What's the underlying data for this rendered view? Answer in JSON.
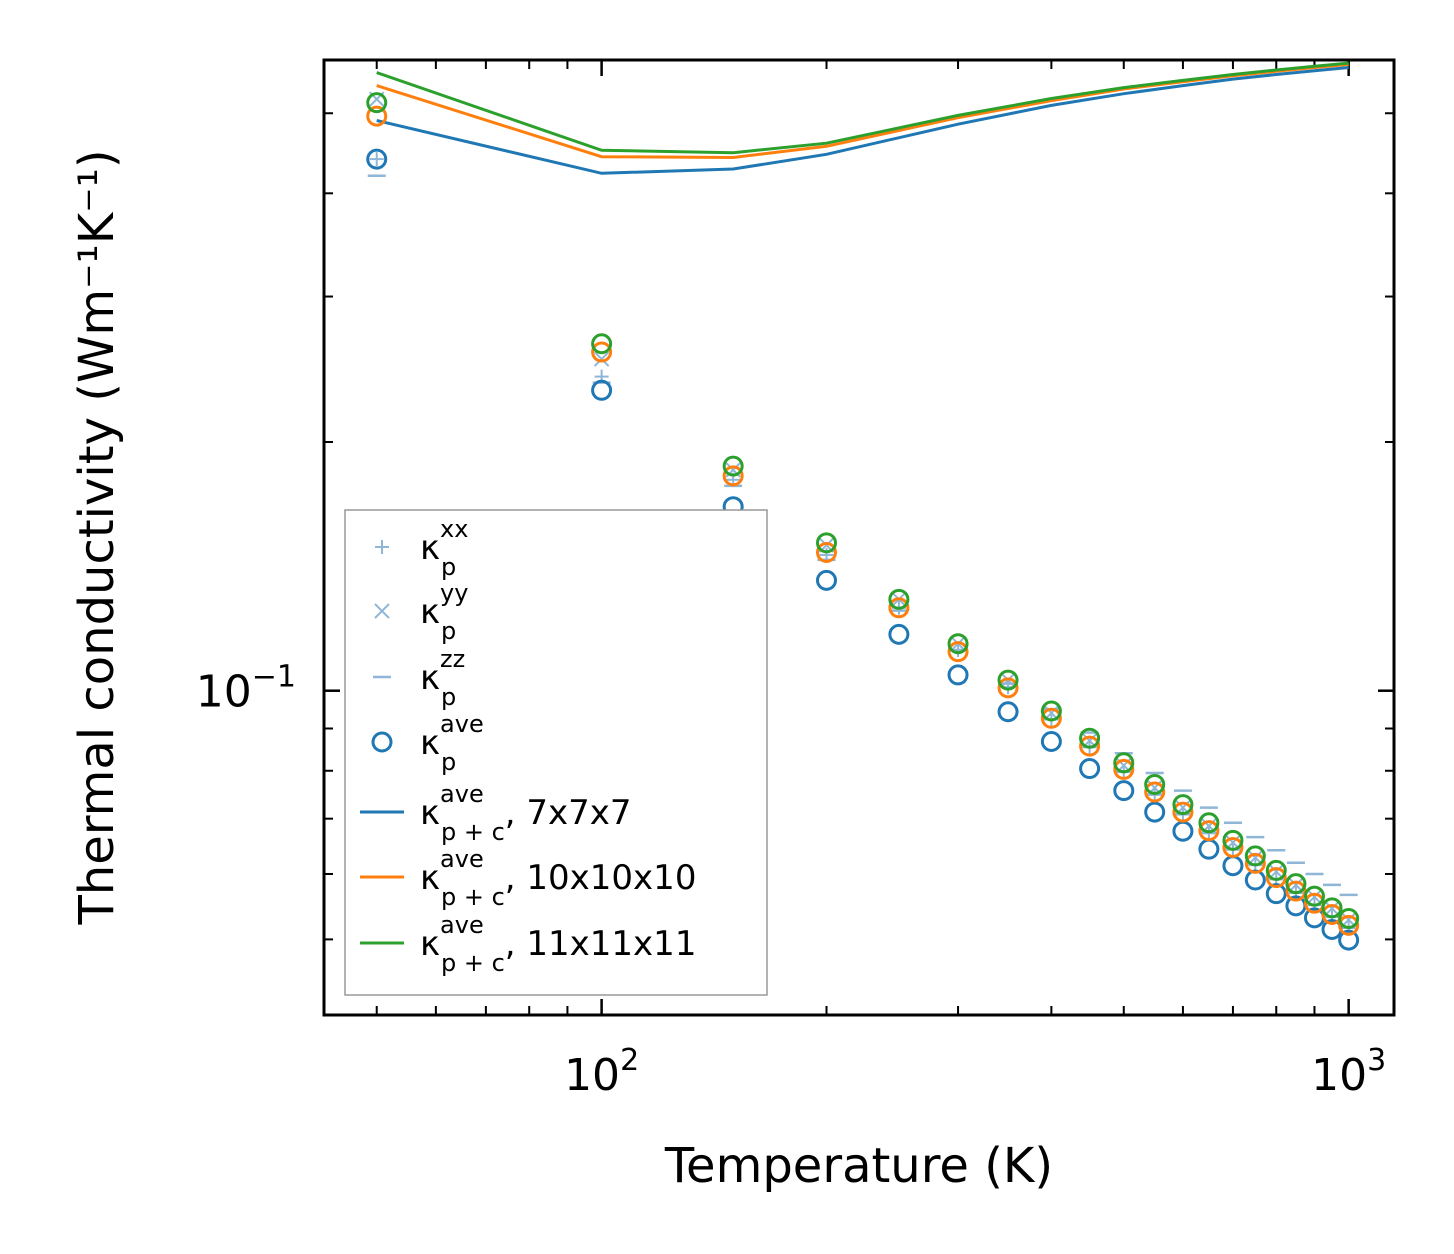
{
  "chart_data": {
    "type": "scatter",
    "xscale": "log",
    "yscale": "log",
    "xlabel": "Temperature (K)",
    "ylabel": "Thermal conductivity (Wm⁻¹K⁻¹)",
    "xlim": [
      42.5,
      1150
    ],
    "ylim": [
      0.0405,
      0.58
    ],
    "xticks": [
      {
        "value": 100,
        "base": "10",
        "exp": "2"
      },
      {
        "value": 1000,
        "base": "10",
        "exp": "3"
      }
    ],
    "yticks": [
      {
        "value": 0.1,
        "base": "10",
        "exp": "−1"
      }
    ],
    "x": [
      50,
      100,
      150,
      200,
      250,
      300,
      350,
      400,
      450,
      500,
      550,
      600,
      650,
      700,
      750,
      800,
      850,
      900,
      950,
      1000
    ],
    "series": [
      {
        "name": "kp_xx",
        "kind": "marker",
        "marker": "plus",
        "color": "#8fb6d6",
        "values": [
          0.44,
          0.24,
          0.18,
          0.146,
          0.126,
          0.112,
          0.101,
          0.0923,
          0.0854,
          0.0797,
          0.0748,
          0.0708,
          0.0672,
          0.0642,
          0.0615,
          0.0591,
          0.0569,
          0.055,
          0.0532,
          0.0516
        ]
      },
      {
        "name": "kp_yy",
        "kind": "marker",
        "marker": "cross",
        "color": "#8fb6d6",
        "values": [
          0.52,
          0.252,
          0.185,
          0.15,
          0.129,
          0.114,
          0.103,
          0.094,
          0.087,
          0.0812,
          0.0763,
          0.0722,
          0.0686,
          0.0655,
          0.0628,
          0.0604,
          0.0582,
          0.0563,
          0.0545,
          0.0528
        ]
      },
      {
        "name": "kp_zz",
        "kind": "marker",
        "marker": "dash",
        "color": "#8fb6d6",
        "values": [
          0.42,
          0.236,
          0.177,
          0.144,
          0.125,
          0.112,
          0.102,
          0.095,
          0.089,
          0.084,
          0.0795,
          0.0757,
          0.0722,
          0.0692,
          0.0665,
          0.0641,
          0.0619,
          0.06,
          0.0582,
          0.0566
        ]
      },
      {
        "name": "kp_ave",
        "kind": "circle",
        "color": "#1f77b4",
        "values": [
          0.44,
          0.231,
          0.167,
          0.136,
          0.117,
          0.1045,
          0.0943,
          0.0868,
          0.0805,
          0.0757,
          0.0713,
          0.0676,
          0.0643,
          0.0614,
          0.059,
          0.0568,
          0.0549,
          0.0531,
          0.0514,
          0.0499
        ]
      },
      {
        "name": "kp_ave_10",
        "kind": "circle",
        "color": "#ff7f0e",
        "values": [
          0.496,
          0.257,
          0.182,
          0.147,
          0.126,
          0.1115,
          0.1008,
          0.0926,
          0.0857,
          0.0803,
          0.0754,
          0.0713,
          0.0677,
          0.0646,
          0.0618,
          0.0594,
          0.0572,
          0.0553,
          0.0536,
          0.052
        ]
      },
      {
        "name": "kp_ave_11",
        "kind": "circle",
        "color": "#2ca02c",
        "values": [
          0.515,
          0.263,
          0.187,
          0.151,
          0.129,
          0.114,
          0.103,
          0.0945,
          0.0876,
          0.0818,
          0.077,
          0.0728,
          0.0692,
          0.0659,
          0.0631,
          0.0606,
          0.0584,
          0.0564,
          0.0546,
          0.053
        ]
      },
      {
        "name": "kpc_7",
        "kind": "line",
        "color": "#1f77b4",
        "x": [
          50,
          100,
          150,
          200,
          300,
          400,
          500,
          600,
          700,
          800,
          900,
          1000
        ],
        "values": [
          0.49,
          0.423,
          0.428,
          0.446,
          0.485,
          0.511,
          0.528,
          0.54,
          0.55,
          0.557,
          0.563,
          0.568
        ]
      },
      {
        "name": "kpc_10",
        "kind": "line",
        "color": "#ff7f0e",
        "x": [
          50,
          100,
          150,
          200,
          300,
          400,
          500,
          600,
          700,
          800,
          900,
          1000
        ],
        "values": [
          0.54,
          0.443,
          0.442,
          0.456,
          0.494,
          0.518,
          0.535,
          0.546,
          0.555,
          0.562,
          0.568,
          0.573
        ]
      },
      {
        "name": "kpc_11",
        "kind": "line",
        "color": "#2ca02c",
        "x": [
          50,
          100,
          150,
          200,
          300,
          400,
          500,
          600,
          700,
          800,
          900,
          1000
        ],
        "values": [
          0.56,
          0.451,
          0.448,
          0.46,
          0.497,
          0.521,
          0.537,
          0.548,
          0.557,
          0.564,
          0.57,
          0.575
        ]
      }
    ],
    "legend": {
      "position": "lower-left",
      "entries": [
        {
          "series": "kp_xx",
          "base": "κ",
          "sub": "p",
          "sup": "xx",
          "suffix": ""
        },
        {
          "series": "kp_yy",
          "base": "κ",
          "sub": "p",
          "sup": "yy",
          "suffix": ""
        },
        {
          "series": "kp_zz",
          "base": "κ",
          "sub": "p",
          "sup": "zz",
          "suffix": ""
        },
        {
          "series": "kp_ave",
          "base": "κ",
          "sub": "p",
          "sup": "ave",
          "suffix": ""
        },
        {
          "series": "kpc_7",
          "base": "κ",
          "sub": "p + c",
          "sup": "ave",
          "suffix": ", 7x7x7"
        },
        {
          "series": "kpc_10",
          "base": "κ",
          "sub": "p + c",
          "sup": "ave",
          "suffix": ", 10x10x10"
        },
        {
          "series": "kpc_11",
          "base": "κ",
          "sub": "p + c",
          "sup": "ave",
          "suffix": ", 11x11x11"
        }
      ]
    }
  }
}
